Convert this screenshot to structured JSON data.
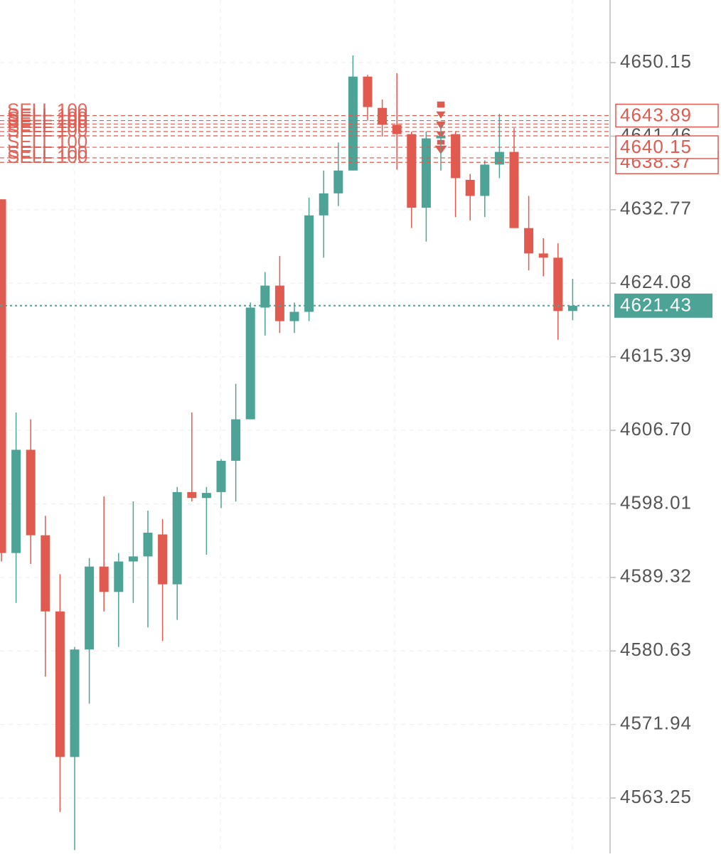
{
  "chart_data": {
    "type": "candlestick",
    "up_color": "#4ea397",
    "down_color": "#e05a4f",
    "open": [
      4634.0,
      4592.2,
      4604.4,
      4594.3,
      4585.3,
      4568.1,
      4580.8,
      4590.6,
      4587.6,
      4591.2,
      4591.8,
      4594.4,
      4588.5,
      4599.4,
      4598.7,
      4599.4,
      4603.1,
      4608.0,
      4621.2,
      4623.8,
      4619.6,
      4620.7,
      4632.1,
      4634.7,
      4637.4,
      4648.5,
      4644.8,
      4642.8,
      4641.7,
      4633.0,
      4641.2,
      4641.7,
      4636.3,
      4634.4,
      4638.1,
      4639.6,
      4630.6,
      4627.6,
      4627.1,
      4620.8
    ],
    "high": [
      4634.0,
      4608.8,
      4608.0,
      4596.6,
      4589.7,
      4581.1,
      4591.6,
      4598.9,
      4592.2,
      4598.3,
      4597.2,
      4596.2,
      4600.0,
      4608.8,
      4600.0,
      4603.3,
      4612.2,
      4621.8,
      4625.4,
      4627.3,
      4621.8,
      4634.2,
      4637.4,
      4640.7,
      4651.0,
      4648.7,
      4645.8,
      4648.9,
      4642.0,
      4642.0,
      4643.0,
      4642.0,
      4637.0,
      4638.6,
      4644.1,
      4642.4,
      4634.4,
      4629.4,
      4628.8,
      4624.6
    ],
    "low": [
      4591.2,
      4586.3,
      4590.9,
      4577.6,
      4561.6,
      4557.1,
      4574.4,
      4585.3,
      4581.1,
      4586.3,
      4583.4,
      4581.8,
      4584.3,
      4598.3,
      4592.0,
      4597.5,
      4598.3,
      4608.0,
      4617.9,
      4618.2,
      4618.2,
      4619.6,
      4627.1,
      4633.2,
      4637.4,
      4643.3,
      4641.4,
      4637.5,
      4630.6,
      4629.0,
      4637.4,
      4631.9,
      4631.5,
      4631.9,
      4636.5,
      4630.6,
      4625.6,
      4624.9,
      4617.4,
      4619.7
    ],
    "close": [
      4592.2,
      4604.4,
      4594.3,
      4585.3,
      4568.1,
      4580.8,
      4590.6,
      4587.6,
      4591.2,
      4591.8,
      4594.6,
      4588.5,
      4599.4,
      4598.7,
      4599.3,
      4603.1,
      4608.0,
      4621.2,
      4623.8,
      4619.6,
      4620.7,
      4632.1,
      4634.7,
      4637.4,
      4648.5,
      4644.9,
      4642.8,
      4641.7,
      4633.0,
      4641.2,
      4641.5,
      4636.5,
      4634.4,
      4638.1,
      4639.6,
      4630.6,
      4627.6,
      4627.1,
      4620.8,
      4621.43
    ],
    "ylim": [
      4556.7,
      4657.55
    ],
    "yticks": [
      4650.15,
      4641.46,
      4632.77,
      4624.08,
      4615.39,
      {
        "value": 4606.7,
        "label": "4606.70"
      },
      4598.01,
      4589.32,
      4580.63,
      4571.94,
      4563.25
    ],
    "grid": true,
    "orders": [
      {
        "label": "SELL 100",
        "price": 4643.89
      },
      {
        "label": "SELL 100",
        "price": 4643.3
      },
      {
        "label": "SELL 100",
        "price": 4642.9
      },
      {
        "label": "SELL 100",
        "price": 4642.5
      },
      {
        "label": "SELL 100",
        "price": 4642.0
      },
      {
        "label": "SELL 100",
        "price": 4641.5
      },
      {
        "label": "SELL 100",
        "price": 4640.15
      },
      {
        "label": "SELL 100",
        "price": 4638.9
      },
      {
        "label": "SELL 100",
        "price": 4638.37
      }
    ],
    "price_tags": [
      4643.89,
      4640.15,
      4638.37
    ],
    "last_price": 4621.43
  }
}
